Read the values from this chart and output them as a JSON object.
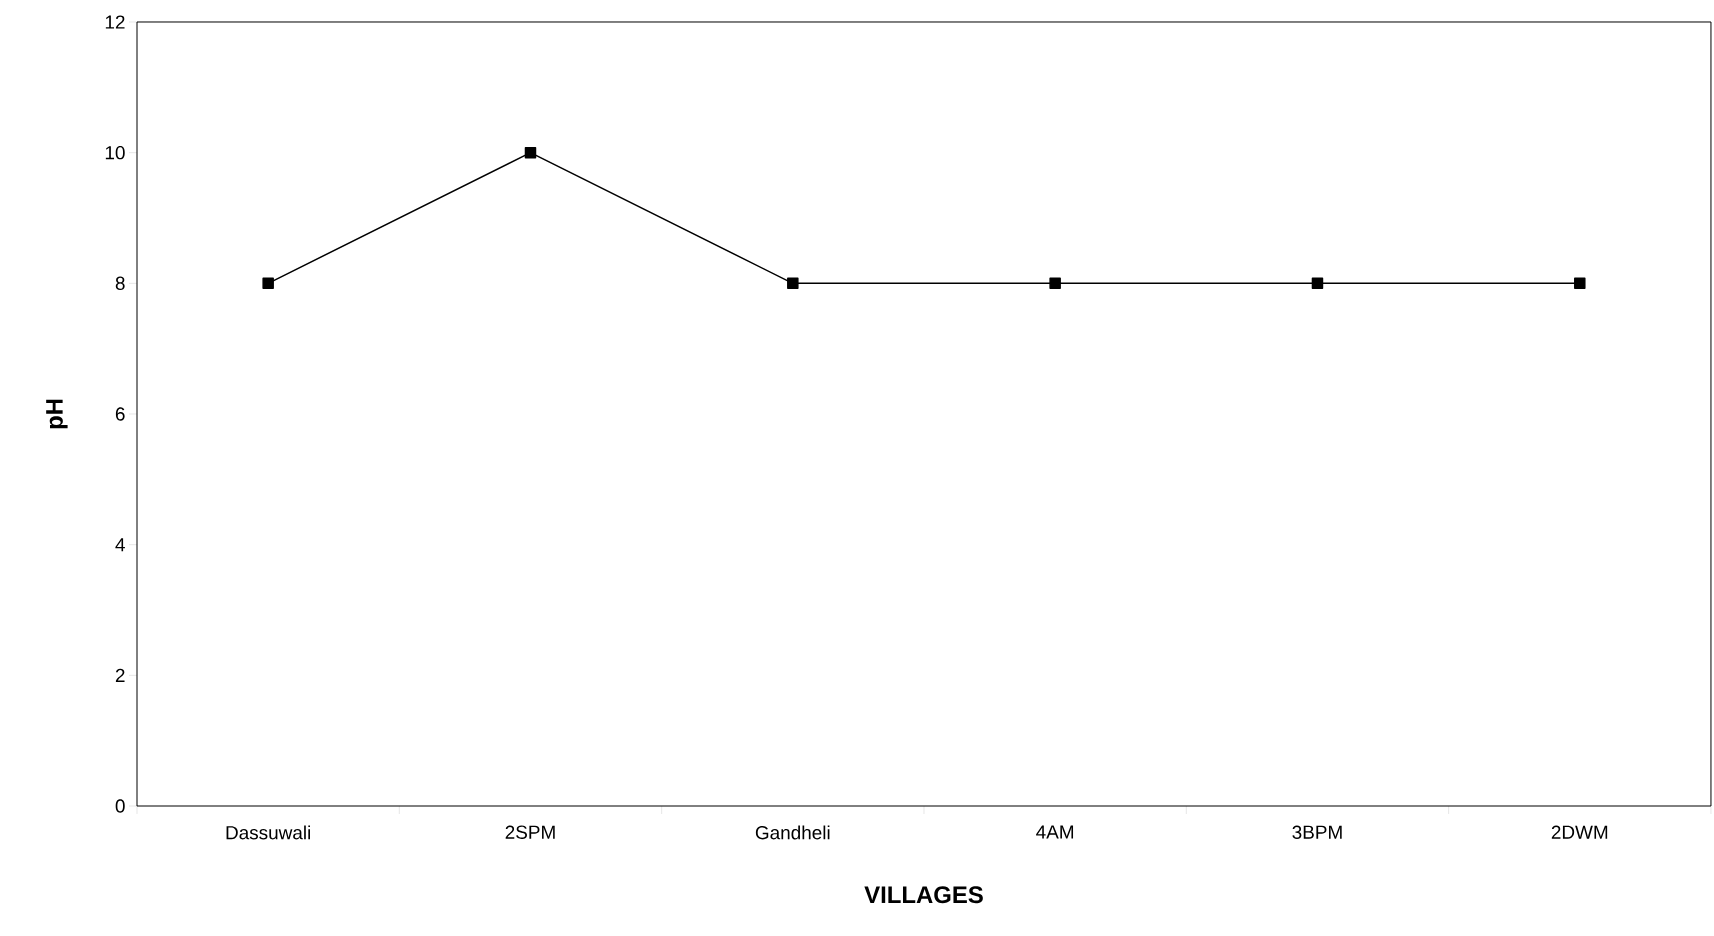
{
  "chart_data": {
    "type": "line",
    "xlabel": "VILLAGES",
    "ylabel": "pH",
    "categories": [
      "Dassuwali",
      "2SPM",
      "Gandheli",
      "4AM",
      "3BPM",
      "2DWM"
    ],
    "values": [
      8,
      10,
      8,
      8,
      8,
      8
    ],
    "color": "#000000",
    "ylim": [
      0,
      12
    ],
    "yticks": [
      0,
      2,
      4,
      6,
      8,
      10,
      12
    ],
    "marker": "square",
    "line_style": "solid"
  }
}
